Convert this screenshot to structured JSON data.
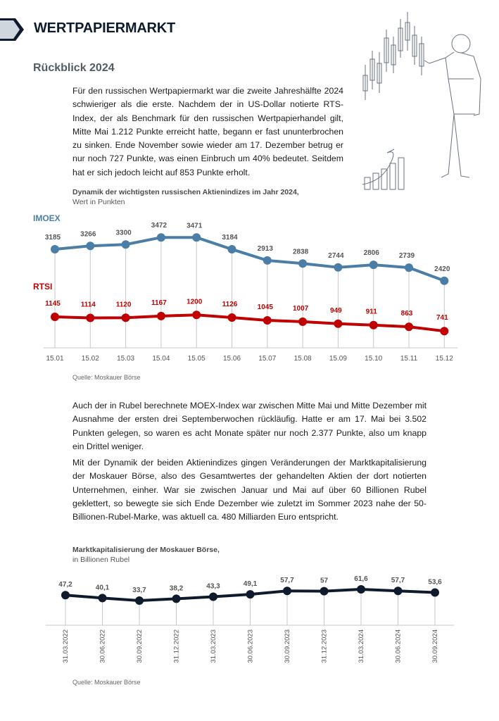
{
  "page": {
    "title": "WERTPAPIERMARKT",
    "section_title": "Rückblick 2024",
    "paragraph_1": "Für den russischen Wertpapiermarkt war die zweite Jahreshälfte 2024 schwieriger als die erste. Nachdem der in US-Dollar notierte RTS-Index, der als Benchmark für den russischen Wertpapierhandel gilt, Mitte Mai 1.212 Punkte erreicht hatte, begann er fast ununterbrochen zu sinken. Ende November sowie wieder am 17. Dezember betrug er nur noch 727 Punkte, was einen Einbruch um 40% bedeutet. Seitdem hat er sich jedoch leicht auf 853 Punkte erholt.",
    "paragraph_2": "Auch der in Rubel berechnete MOEX-Index war zwischen Mitte Mai und Mitte Dezember mit Ausnahme der ersten drei Septemberwochen rückläufig. Hatte er am 17. Mai bei 3.502 Punkten gelegen, so waren es acht Monate später nur noch 2.377 Punkte, also um knapp ein Drittel weniger.",
    "paragraph_3": "Mit der Dynamik der beiden Aktienindizes gingen Veränderungen der Marktkapitalisierung der Moskauer Börse, also des Gesamtwertes der gehandelten Aktien der dort notierten Unternehmen, einher. War sie zwischen Januar und Mai auf über 60 Billionen Rubel geklettert, so bewegte sie sich Ende Dezember wie zuletzt im Sommer 2023 nahe der 50-Billionen-Rubel-Marke, was aktuell ca. 480 Milliarden Euro entspricht."
  },
  "colors": {
    "imoex": "#4a7ea6",
    "rtsi": "#c00000",
    "mcap": "#0f1b2d",
    "grid": "#c8c8c8"
  },
  "chart_data": [
    {
      "type": "line",
      "title": "Dynamik der wichtigsten russischen Aktienindizes im Jahr 2024,",
      "subtitle": "Wert in Punkten",
      "source": "Quelle: Moskauer Börse",
      "categories": [
        "15.01",
        "15.02",
        "15.03",
        "15.04",
        "15.05",
        "15.06",
        "15.07",
        "15.08",
        "15.09",
        "15.10",
        "15.11",
        "15.12"
      ],
      "series": [
        {
          "name": "IMOEX",
          "values": [
            3185,
            3266,
            3300,
            3472,
            3471,
            3184,
            2913,
            2838,
            2744,
            2806,
            2739,
            2420
          ]
        },
        {
          "name": "RTSI",
          "values": [
            1145,
            1114,
            1120,
            1167,
            1200,
            1126,
            1045,
            1007,
            949,
            911,
            863,
            741
          ]
        }
      ]
    },
    {
      "type": "line",
      "title": "Marktkapitalisierung der Moskauer Börse,",
      "subtitle": "in Billionen Rubel",
      "source": "Quelle: Moskauer Börse",
      "categories": [
        "31.03.2022",
        "30.06.2022",
        "30.09.2022",
        "31.12.2022",
        "31.03.2023",
        "30.06.2023",
        "30.09.2023",
        "31.12.2023",
        "31.03.2024",
        "30.06.2024",
        "30.09.2024"
      ],
      "labels": [
        "47,2",
        "40,1",
        "33,7",
        "38,2",
        "43,3",
        "49,1",
        "57,7",
        "57",
        "61,6",
        "57,7",
        "53,6"
      ],
      "series": [
        {
          "name": "Marktkapitalisierung",
          "values": [
            47.2,
            40.1,
            33.7,
            38.2,
            43.3,
            49.1,
            57.7,
            57,
            61.6,
            57.7,
            53.6
          ]
        }
      ]
    }
  ]
}
